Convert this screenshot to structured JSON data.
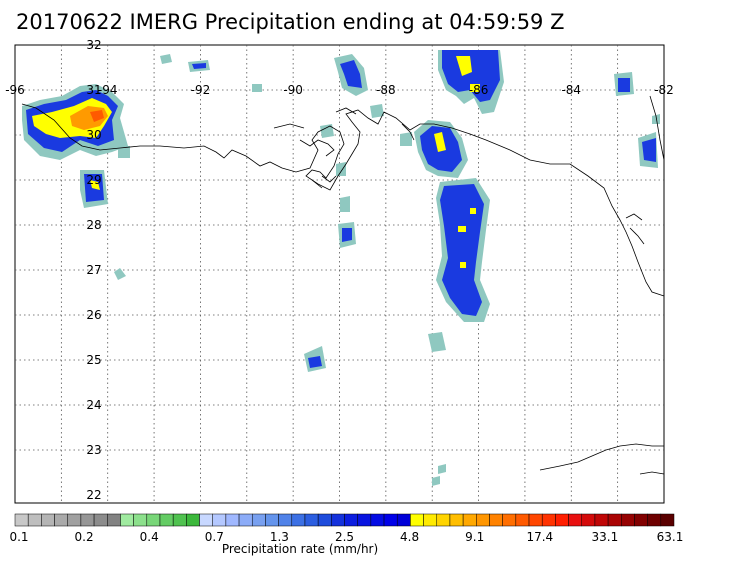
{
  "title": "20170622 IMERG Precipitation ending at 04:59:59 Z",
  "lon_labels": [
    "-96",
    "-94",
    "-92",
    "-90",
    "-88",
    "-86",
    "-84",
    "-82"
  ],
  "lat_labels": [
    "32",
    "31",
    "30",
    "29",
    "28",
    "27",
    "26",
    "25",
    "24",
    "23",
    "22"
  ],
  "colorbar": {
    "label": "Precipitation rate (mm/hr)",
    "tick_labels": [
      "0.1",
      "0.2",
      "0.4",
      "0.7",
      "1.3",
      "2.5",
      "4.8",
      "9.1",
      "17.4",
      "33.1",
      "63.1"
    ],
    "colors": [
      "#c8c8c8",
      "#bebebe",
      "#b4b4b4",
      "#aaaaaa",
      "#a0a0a0",
      "#969696",
      "#8c8c8c",
      "#828282",
      "#a0eba0",
      "#8ce08c",
      "#78d678",
      "#64cc64",
      "#50c250",
      "#3cb83c",
      "#c8d8ff",
      "#b4c8ff",
      "#a0b8ff",
      "#8cacf8",
      "#78a0f0",
      "#6494ec",
      "#5082e8",
      "#3c70e4",
      "#2c5ee0",
      "#1e4cdc",
      "#1432dc",
      "#0c1ee0",
      "#0814e0",
      "#040ce4",
      "#0000e8",
      "#0000d8",
      "#ffff00",
      "#ffea00",
      "#ffd400",
      "#ffbe00",
      "#ffa800",
      "#ff9600",
      "#ff8200",
      "#ff6e00",
      "#ff5a00",
      "#ff4600",
      "#ff3200",
      "#ff1e00",
      "#e81010",
      "#d40a0a",
      "#c00606",
      "#aa0404",
      "#960202",
      "#820000",
      "#6e0000",
      "#5a0000"
    ]
  },
  "palette": {
    "light": "#8fc8c0",
    "blue": "#1a3ae0",
    "dark_blue": "#0000d0",
    "yellow": "#ffff00",
    "orange": "#ff9a00",
    "red_orange": "#ff5a00"
  }
}
